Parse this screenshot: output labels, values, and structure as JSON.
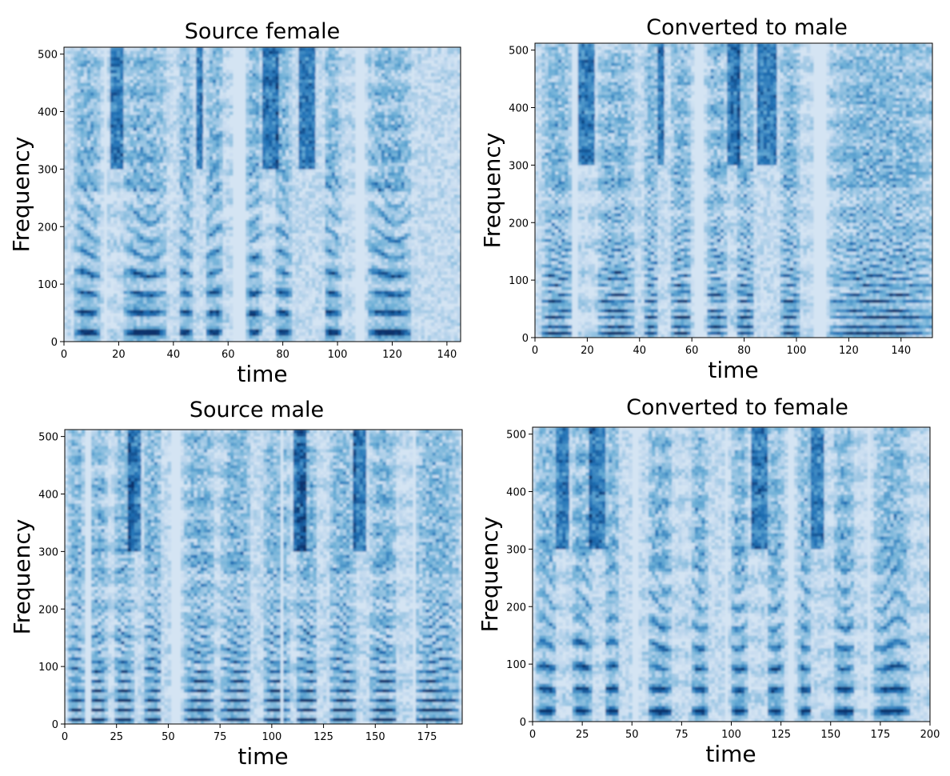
{
  "figure": {
    "colormap": [
      "#f7fbff",
      "#c6dbef",
      "#6baed6",
      "#2171b5",
      "#08306b"
    ]
  },
  "chart_data": [
    {
      "type": "heatmap",
      "title": "Source female",
      "xlabel": "time",
      "ylabel": "Frequency",
      "xlim": [
        0,
        145
      ],
      "ylim": [
        0,
        512
      ],
      "xticks": [
        0,
        20,
        40,
        60,
        80,
        100,
        120,
        140
      ],
      "yticks": [
        0,
        100,
        200,
        300,
        400,
        500
      ],
      "seed": 11,
      "harmonic_spacing": 34,
      "voiced_segments": [
        [
          4,
          13
        ],
        [
          22,
          37
        ],
        [
          42,
          47
        ],
        [
          52,
          58
        ],
        [
          67,
          72
        ],
        [
          77,
          83
        ],
        [
          95,
          101
        ],
        [
          111,
          127
        ]
      ],
      "dark_columns": [
        [
          17,
          22
        ],
        [
          48,
          51
        ],
        [
          73,
          78
        ],
        [
          86,
          92
        ]
      ],
      "gaps": [
        [
          14,
          16
        ],
        [
          62,
          66
        ],
        [
          106,
          110
        ]
      ]
    },
    {
      "type": "heatmap",
      "title": "Converted to male",
      "xlabel": "time",
      "ylabel": "Frequency",
      "xlim": [
        0,
        152
      ],
      "ylim": [
        0,
        512
      ],
      "xticks": [
        0,
        20,
        40,
        60,
        80,
        100,
        120,
        140
      ],
      "yticks": [
        0,
        100,
        200,
        300,
        400,
        500
      ],
      "seed": 23,
      "harmonic_spacing": 14,
      "voiced_segments": [
        [
          3,
          14
        ],
        [
          24,
          38
        ],
        [
          42,
          47
        ],
        [
          52,
          60
        ],
        [
          66,
          73
        ],
        [
          77,
          84
        ],
        [
          94,
          101
        ],
        [
          113,
          152
        ]
      ],
      "dark_columns": [
        [
          17,
          23
        ],
        [
          47,
          50
        ],
        [
          74,
          79
        ],
        [
          85,
          93
        ]
      ],
      "gaps": [
        [
          14,
          16
        ],
        [
          61,
          64
        ],
        [
          106,
          111
        ]
      ]
    },
    {
      "type": "heatmap",
      "title": "Source male",
      "xlabel": "time",
      "ylabel": "Frequency",
      "xlim": [
        0,
        192
      ],
      "ylim": [
        0,
        512
      ],
      "xticks": [
        0,
        25,
        50,
        75,
        100,
        125,
        150,
        175
      ],
      "yticks": [
        0,
        100,
        200,
        300,
        400,
        500
      ],
      "seed": 37,
      "harmonic_spacing": 17,
      "voiced_segments": [
        [
          2,
          9
        ],
        [
          12,
          20
        ],
        [
          24,
          33
        ],
        [
          38,
          47
        ],
        [
          58,
          72
        ],
        [
          76,
          90
        ],
        [
          96,
          108
        ],
        [
          112,
          122
        ],
        [
          128,
          140
        ],
        [
          148,
          160
        ],
        [
          170,
          190
        ]
      ],
      "dark_columns": [
        [
          30,
          36
        ],
        [
          110,
          116
        ],
        [
          140,
          146
        ]
      ],
      "gaps": [
        [
          10,
          12
        ],
        [
          52,
          56
        ],
        [
          104,
          106
        ],
        [
          168,
          170
        ]
      ]
    },
    {
      "type": "heatmap",
      "title": "Converted to female",
      "xlabel": "time",
      "ylabel": "Frequency",
      "xlim": [
        0,
        200
      ],
      "ylim": [
        0,
        512
      ],
      "xticks": [
        0,
        25,
        50,
        75,
        100,
        125,
        150,
        175,
        200
      ],
      "yticks": [
        0,
        100,
        200,
        300,
        400,
        500
      ],
      "seed": 53,
      "harmonic_spacing": 38,
      "voiced_segments": [
        [
          2,
          12
        ],
        [
          20,
          30
        ],
        [
          36,
          44
        ],
        [
          58,
          70
        ],
        [
          80,
          88
        ],
        [
          100,
          108
        ],
        [
          118,
          126
        ],
        [
          134,
          140
        ],
        [
          152,
          162
        ],
        [
          172,
          190
        ]
      ],
      "dark_columns": [
        [
          12,
          18
        ],
        [
          28,
          36
        ],
        [
          110,
          118
        ],
        [
          140,
          146
        ]
      ],
      "gaps": [
        [
          50,
          53
        ],
        [
          96,
          98
        ],
        [
          128,
          131
        ],
        [
          168,
          170
        ]
      ]
    }
  ]
}
